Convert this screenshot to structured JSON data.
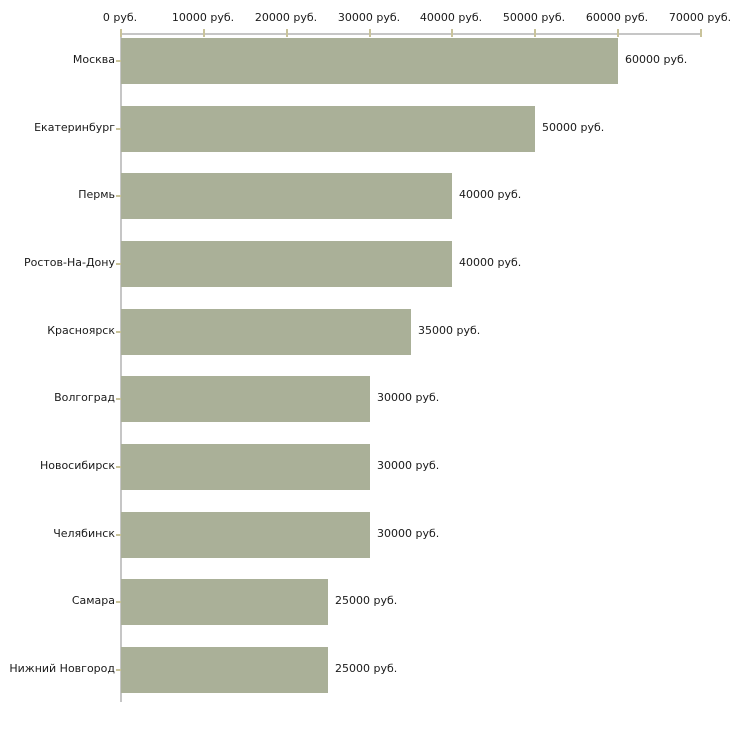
{
  "chart_data": {
    "type": "bar",
    "orientation": "horizontal",
    "title": "",
    "xlabel": "",
    "ylabel": "",
    "unit": "руб.",
    "grid": false,
    "legend": null,
    "xlim": [
      0,
      70000
    ],
    "x_ticks": [
      0,
      10000,
      20000,
      30000,
      40000,
      50000,
      60000,
      70000
    ],
    "x_tick_labels": [
      "0 руб.",
      "10000 руб.",
      "20000 руб.",
      "30000 руб.",
      "40000 руб.",
      "50000 руб.",
      "60000 руб.",
      "70000 руб."
    ],
    "categories": [
      "Москва",
      "Екатеринбург",
      "Пермь",
      "Ростов-На-Дону",
      "Красноярск",
      "Волгоград",
      "Новосибирск",
      "Челябинск",
      "Самара",
      "Нижний Новгород"
    ],
    "values": [
      60000,
      50000,
      40000,
      40000,
      35000,
      30000,
      30000,
      30000,
      25000,
      25000
    ],
    "bar_labels": [
      "60000 руб.",
      "50000 руб.",
      "40000 руб.",
      "40000 руб.",
      "35000 руб.",
      "30000 руб.",
      "30000 руб.",
      "30000 руб.",
      "25000 руб.",
      "25000 руб."
    ],
    "colors": {
      "bar": "#aab098",
      "axis": "#c6c6c6",
      "tick": "#c9c39a",
      "text": "#1a1a1a",
      "background": "#ffffff"
    }
  }
}
